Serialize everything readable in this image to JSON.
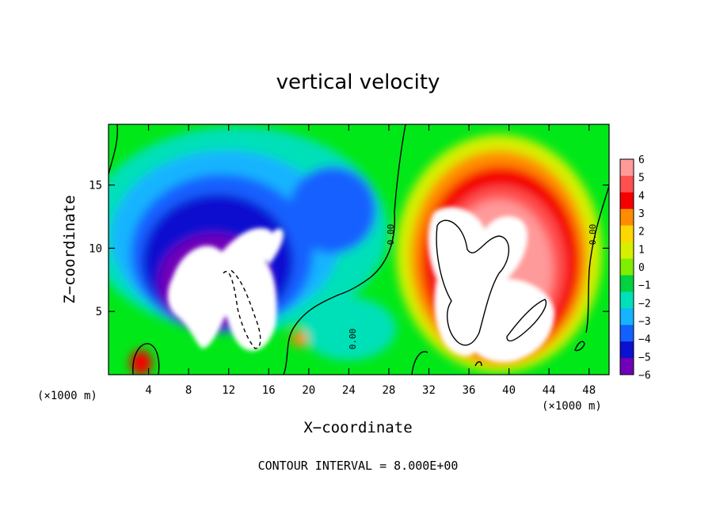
{
  "chart_data": {
    "type": "heatmap",
    "title": "vertical velocity",
    "xlabel": "X−coordinate",
    "ylabel": "Z−coordinate",
    "x_unit": "(×1000 m)",
    "y_unit": "(×1000 m)",
    "xlim": [
      0,
      50
    ],
    "ylim": [
      0,
      19.8
    ],
    "xticks": [
      4,
      8,
      12,
      16,
      20,
      24,
      28,
      32,
      36,
      40,
      44,
      48
    ],
    "yticks": [
      5,
      10,
      15
    ],
    "colorbar": {
      "levels": [
        6,
        5,
        4,
        3,
        2,
        1,
        0,
        -1,
        -2,
        -3,
        -4,
        -5,
        -6
      ],
      "level_labels": [
        "6",
        "5",
        "4",
        "3",
        "2",
        "1",
        "0",
        "−1",
        "−2",
        "−3",
        "−4",
        "−5",
        "−6"
      ],
      "colors": [
        "#ff9a9a",
        "#ff5050",
        "#f40000",
        "#ff8c00",
        "#ffd700",
        "#d6f000",
        "#80ee00",
        "#00d240",
        "#00e0b8",
        "#14b4ff",
        "#1460ff",
        "#0c10d0",
        "#7000b8"
      ],
      "over_color": "#ffffff"
    },
    "features": [
      {
        "kind": "downdraft",
        "x": 12,
        "z": 8,
        "peak": "below -6"
      },
      {
        "kind": "updraft",
        "x": 38,
        "z": 9,
        "peak": "above 6"
      },
      {
        "kind": "updraft",
        "x": 3.6,
        "z": 1.2,
        "peak": 5
      }
    ],
    "contour_labels": [
      "0.00",
      "0.00",
      "0.00"
    ],
    "contour_interval_text": "CONTOUR INTERVAL = 8.000E+00"
  },
  "colors": {
    "background": "#00e818",
    "axis": "#000000"
  }
}
